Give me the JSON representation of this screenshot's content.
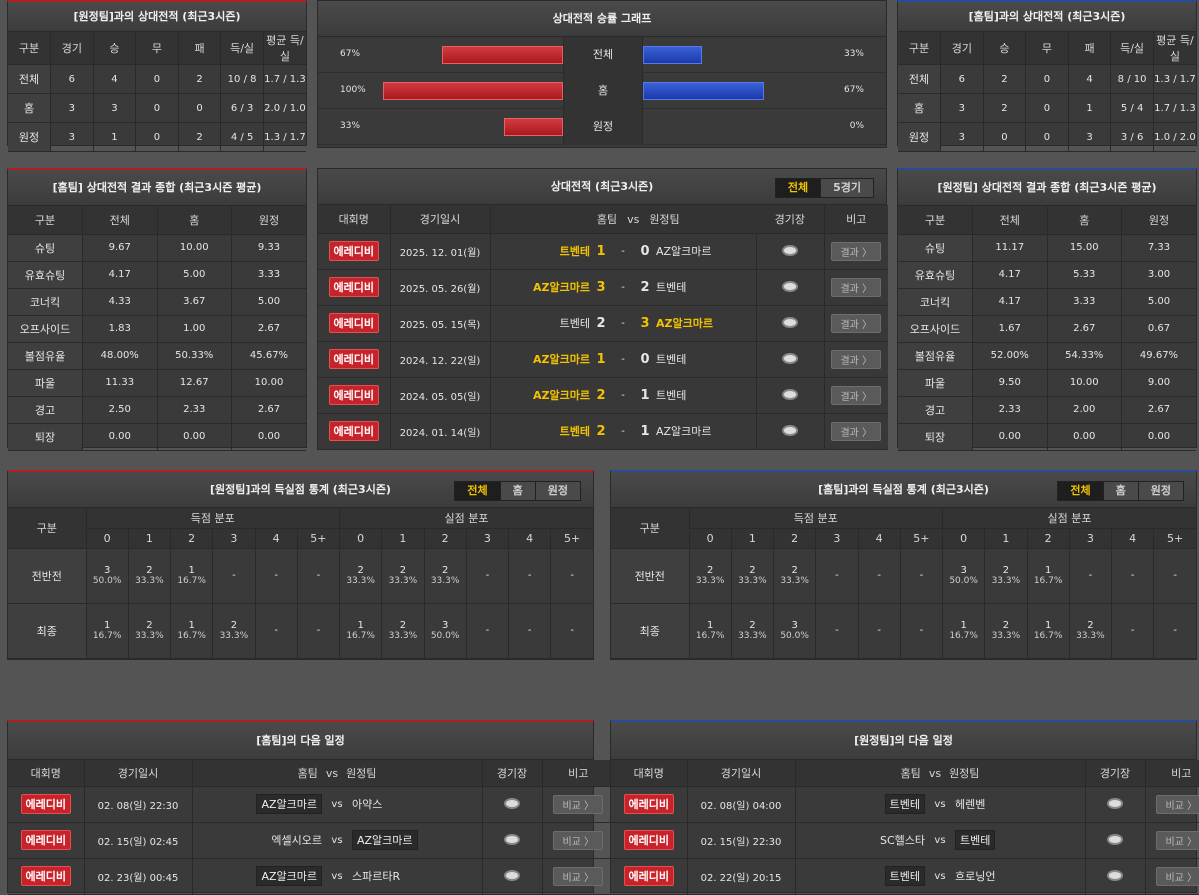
{
  "away_h2h": {
    "title": "[원정팀]과의 상대전적 (최근3시즌)",
    "headers": [
      "구분",
      "경기",
      "승",
      "무",
      "패",
      "득/실",
      "평균 득/실"
    ],
    "rows": [
      [
        "전체",
        "6",
        "4",
        "0",
        "2",
        "10 / 8",
        "1.7 / 1.3"
      ],
      [
        "홈",
        "3",
        "3",
        "0",
        "0",
        "6 / 3",
        "2.0 / 1.0"
      ],
      [
        "원정",
        "3",
        "1",
        "0",
        "2",
        "4 / 5",
        "1.3 / 1.7"
      ]
    ]
  },
  "graph": {
    "title": "상대전적 승률 그래프",
    "rows": [
      {
        "label": "전체",
        "left": "67%",
        "right": "33%",
        "left_value": 67,
        "right_value": 33
      },
      {
        "label": "홈",
        "left": "100%",
        "right": "67%",
        "left_value": 100,
        "right_value": 67
      },
      {
        "label": "원정",
        "left": "33%",
        "right": "0%",
        "left_value": 33,
        "right_value": 0
      }
    ],
    "left_color": "#c8222a",
    "right_color": "#2450c8"
  },
  "home_h2h": {
    "title": "[홈팀]과의 상대전적 (최근3시즌)",
    "headers": [
      "구분",
      "경기",
      "승",
      "무",
      "패",
      "득/실",
      "평균 득/실"
    ],
    "rows": [
      [
        "전체",
        "6",
        "2",
        "0",
        "4",
        "8 / 10",
        "1.3 / 1.7"
      ],
      [
        "홈",
        "3",
        "2",
        "0",
        "1",
        "5 / 4",
        "1.7 / 1.3"
      ],
      [
        "원정",
        "3",
        "0",
        "0",
        "3",
        "3 / 6",
        "1.0 / 2.0"
      ]
    ]
  },
  "home_summary": {
    "title": "[홈팀] 상대전적 결과 종합 (최근3시즌 평균)",
    "headers": [
      "구분",
      "전체",
      "홈",
      "원정"
    ],
    "rows": [
      [
        "슈팅",
        "9.67",
        "10.00",
        "9.33"
      ],
      [
        "유효슈팅",
        "4.17",
        "5.00",
        "3.33"
      ],
      [
        "코너킥",
        "4.33",
        "3.67",
        "5.00"
      ],
      [
        "오프사이드",
        "1.83",
        "1.00",
        "2.67"
      ],
      [
        "볼점유율",
        "48.00%",
        "50.33%",
        "45.67%"
      ],
      [
        "파울",
        "11.33",
        "12.67",
        "10.00"
      ],
      [
        "경고",
        "2.50",
        "2.33",
        "2.67"
      ],
      [
        "퇴장",
        "0.00",
        "0.00",
        "0.00"
      ]
    ]
  },
  "away_summary": {
    "title": "[원정팀] 상대전적 결과 종합 (최근3시즌 평균)",
    "headers": [
      "구분",
      "전체",
      "홈",
      "원정"
    ],
    "rows": [
      [
        "슈팅",
        "11.17",
        "15.00",
        "7.33"
      ],
      [
        "유효슈팅",
        "4.17",
        "5.33",
        "3.00"
      ],
      [
        "코너킥",
        "4.17",
        "3.33",
        "5.00"
      ],
      [
        "오프사이드",
        "1.67",
        "2.67",
        "0.67"
      ],
      [
        "볼점유율",
        "52.00%",
        "54.33%",
        "49.67%"
      ],
      [
        "파울",
        "9.50",
        "10.00",
        "9.00"
      ],
      [
        "경고",
        "2.33",
        "2.00",
        "2.67"
      ],
      [
        "퇴장",
        "0.00",
        "0.00",
        "0.00"
      ]
    ]
  },
  "matches": {
    "title": "상대전적 (최근3시즌)",
    "tabs": [
      "전체",
      "5경기"
    ],
    "headers": {
      "league": "대회명",
      "date": "경기일시",
      "home": "홈팀",
      "vs": "vs",
      "away": "원정팀",
      "stadium": "경기장",
      "note": "비고"
    },
    "rows": [
      {
        "league": "에레디비",
        "date": "2025. 12. 01(월)",
        "home": "트벤테",
        "hs": "1",
        "as": "0",
        "away": "AZ알크마르",
        "winner": "home",
        "btn": "결과 〉"
      },
      {
        "league": "에레디비",
        "date": "2025. 05. 26(월)",
        "home": "AZ알크마르",
        "hs": "3",
        "as": "2",
        "away": "트벤테",
        "winner": "home",
        "btn": "결과 〉"
      },
      {
        "league": "에레디비",
        "date": "2025. 05. 15(목)",
        "home": "트벤테",
        "hs": "2",
        "as": "3",
        "away": "AZ알크마르",
        "winner": "away",
        "btn": "결과 〉"
      },
      {
        "league": "에레디비",
        "date": "2024. 12. 22(일)",
        "home": "AZ알크마르",
        "hs": "1",
        "as": "0",
        "away": "트벤테",
        "winner": "home",
        "btn": "결과 〉"
      },
      {
        "league": "에레디비",
        "date": "2024. 05. 05(일)",
        "home": "AZ알크마르",
        "hs": "2",
        "as": "1",
        "away": "트벤테",
        "winner": "home",
        "btn": "결과 〉"
      },
      {
        "league": "에레디비",
        "date": "2024. 01. 14(일)",
        "home": "트벤테",
        "hs": "2",
        "as": "1",
        "away": "AZ알크마르",
        "winner": "home",
        "btn": "결과 〉"
      }
    ]
  },
  "away_goals": {
    "title": "[원정팀]과의 득실점 통계 (최근3시즌)",
    "tabs": [
      "전체",
      "홈",
      "원정"
    ],
    "col_group": "구분",
    "scored": "득점 분포",
    "conceded": "실점 분포",
    "cols": [
      "0",
      "1",
      "2",
      "3",
      "4",
      "5+"
    ],
    "rows": [
      {
        "label": "전반전",
        "scored": [
          [
            "3",
            "50.0%"
          ],
          [
            "2",
            "33.3%"
          ],
          [
            "1",
            "16.7%"
          ],
          [
            "-",
            ""
          ],
          [
            "-",
            ""
          ],
          [
            "-",
            ""
          ]
        ],
        "conceded": [
          [
            "2",
            "33.3%"
          ],
          [
            "2",
            "33.3%"
          ],
          [
            "2",
            "33.3%"
          ],
          [
            "-",
            ""
          ],
          [
            "-",
            ""
          ],
          [
            "-",
            ""
          ]
        ]
      },
      {
        "label": "최종",
        "scored": [
          [
            "1",
            "16.7%"
          ],
          [
            "2",
            "33.3%"
          ],
          [
            "1",
            "16.7%"
          ],
          [
            "2",
            "33.3%"
          ],
          [
            "-",
            ""
          ],
          [
            "-",
            ""
          ]
        ],
        "conceded": [
          [
            "1",
            "16.7%"
          ],
          [
            "2",
            "33.3%"
          ],
          [
            "3",
            "50.0%"
          ],
          [
            "-",
            ""
          ],
          [
            "-",
            ""
          ],
          [
            "-",
            ""
          ]
        ]
      }
    ]
  },
  "home_goals": {
    "title": "[홈팀]과의 득실점 통계 (최근3시즌)",
    "tabs": [
      "전체",
      "홈",
      "원정"
    ],
    "col_group": "구분",
    "scored": "득점 분포",
    "conceded": "실점 분포",
    "cols": [
      "0",
      "1",
      "2",
      "3",
      "4",
      "5+"
    ],
    "rows": [
      {
        "label": "전반전",
        "scored": [
          [
            "2",
            "33.3%"
          ],
          [
            "2",
            "33.3%"
          ],
          [
            "2",
            "33.3%"
          ],
          [
            "-",
            ""
          ],
          [
            "-",
            ""
          ],
          [
            "-",
            ""
          ]
        ],
        "conceded": [
          [
            "3",
            "50.0%"
          ],
          [
            "2",
            "33.3%"
          ],
          [
            "1",
            "16.7%"
          ],
          [
            "-",
            ""
          ],
          [
            "-",
            ""
          ],
          [
            "-",
            ""
          ]
        ]
      },
      {
        "label": "최종",
        "scored": [
          [
            "1",
            "16.7%"
          ],
          [
            "2",
            "33.3%"
          ],
          [
            "3",
            "50.0%"
          ],
          [
            "-",
            ""
          ],
          [
            "-",
            ""
          ],
          [
            "-",
            ""
          ]
        ],
        "conceded": [
          [
            "1",
            "16.7%"
          ],
          [
            "2",
            "33.3%"
          ],
          [
            "1",
            "16.7%"
          ],
          [
            "2",
            "33.3%"
          ],
          [
            "-",
            ""
          ],
          [
            "-",
            ""
          ]
        ]
      }
    ]
  },
  "home_next": {
    "title": "[홈팀]의 다음 일정",
    "headers": {
      "league": "대회명",
      "date": "경기일시",
      "home": "홈팀",
      "vs": "vs",
      "away": "원정팀",
      "stadium": "경기장",
      "note": "비고"
    },
    "rows": [
      {
        "league": "에레디비",
        "date": "02. 08(일) 22:30",
        "home": "AZ알크마르",
        "away": "아약스",
        "boxed": "home",
        "btn": "비교 〉"
      },
      {
        "league": "에레디비",
        "date": "02. 15(일) 02:45",
        "home": "엑셀시오르",
        "away": "AZ알크마르",
        "boxed": "away",
        "btn": "비교 〉"
      },
      {
        "league": "에레디비",
        "date": "02. 23(월) 00:45",
        "home": "AZ알크마르",
        "away": "스파르타R",
        "boxed": "home",
        "btn": "비교 〉"
      }
    ]
  },
  "away_next": {
    "title": "[원정팀]의 다음 일정",
    "headers": {
      "league": "대회명",
      "date": "경기일시",
      "home": "홈팀",
      "vs": "vs",
      "away": "원정팀",
      "stadium": "경기장",
      "note": "비고"
    },
    "rows": [
      {
        "league": "에레디비",
        "date": "02. 08(일) 04:00",
        "home": "트벤테",
        "away": "헤렌벤",
        "boxed": "home",
        "btn": "비교 〉"
      },
      {
        "league": "에레디비",
        "date": "02. 15(일) 22:30",
        "home": "SC헬스타",
        "away": "트벤테",
        "boxed": "away",
        "btn": "비교 〉"
      },
      {
        "league": "에레디비",
        "date": "02. 22(일) 20:15",
        "home": "트벤테",
        "away": "흐로닝언",
        "boxed": "home",
        "btn": "비교 〉"
      }
    ]
  }
}
